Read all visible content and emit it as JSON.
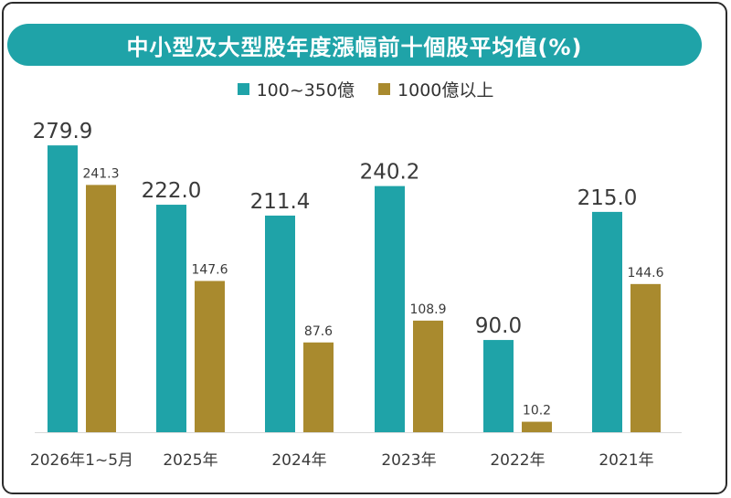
{
  "title": "中小型及大型股年度漲幅前十個股平均值(%)",
  "colors": {
    "title_bg": "#1fa3a8",
    "series_a": "#1fa3a8",
    "series_b": "#a98a2e",
    "frame": "#2b2b2b"
  },
  "legend": [
    {
      "label": "100~350億",
      "color": "#1fa3a8"
    },
    {
      "label": "1000億以上",
      "color": "#a98a2e"
    }
  ],
  "chart_data": {
    "type": "bar",
    "title": "中小型及大型股年度漲幅前十個股平均值(%)",
    "categories": [
      "2026年1~5月",
      "2025年",
      "2024年",
      "2023年",
      "2022年",
      "2021年"
    ],
    "series": [
      {
        "name": "100~350億",
        "values": [
          279.9,
          222.0,
          211.4,
          240.2,
          90.0,
          215.0
        ],
        "labels": [
          "279.9",
          "222.0",
          "211.4",
          "240.2",
          "90.0",
          "215.0"
        ]
      },
      {
        "name": "1000億以上",
        "values": [
          241.3,
          147.6,
          87.6,
          108.9,
          10.2,
          144.6
        ],
        "labels": [
          "241.3",
          "147.6",
          "87.6",
          "108.9",
          "10.2",
          "144.6"
        ]
      }
    ],
    "ylim": [
      0,
      280
    ],
    "grid": false,
    "legend_position": "top-center"
  }
}
